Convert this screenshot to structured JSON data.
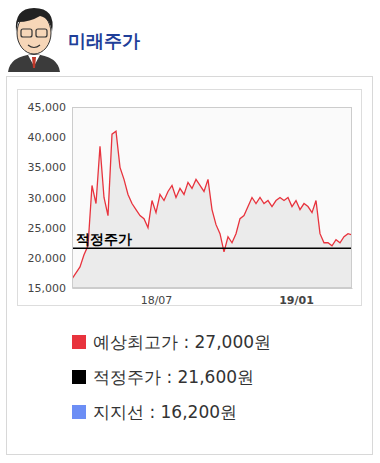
{
  "chart_data": {
    "type": "line",
    "title": "미래주가",
    "color": "#e8333d",
    "categories": [
      null,
      null,
      null,
      null,
      null,
      null,
      null,
      null,
      null,
      null,
      null,
      null,
      null,
      null,
      null,
      null,
      null,
      null,
      null,
      null,
      null,
      "18/07",
      null,
      null,
      null,
      null,
      null,
      null,
      null,
      null,
      null,
      null,
      null,
      null,
      null,
      null,
      null,
      null,
      null,
      null,
      null,
      null,
      null,
      null,
      null,
      null,
      null,
      null,
      null,
      null,
      null,
      null,
      null,
      null,
      null,
      null,
      "19/01",
      null,
      null,
      null,
      null,
      null,
      null,
      null,
      null,
      null,
      null,
      null,
      null,
      null,
      null
    ],
    "values": [
      16500,
      17500,
      18500,
      20500,
      22000,
      32000,
      29000,
      38500,
      30000,
      27000,
      40500,
      41000,
      35000,
      33000,
      30500,
      29000,
      28000,
      27000,
      26500,
      25000,
      29500,
      27500,
      30500,
      29500,
      31000,
      32000,
      30000,
      31500,
      30500,
      32500,
      31500,
      33000,
      32000,
      31000,
      33000,
      28000,
      25500,
      24000,
      21000,
      23500,
      22500,
      24000,
      26500,
      27000,
      28500,
      30000,
      29000,
      30000,
      29000,
      29500,
      28500,
      29500,
      30000,
      29500,
      30000,
      28500,
      29500,
      28000,
      29000,
      28500,
      27500,
      29500,
      24000,
      22500,
      22500,
      22000,
      23000,
      22500,
      23500,
      24000,
      23800
    ],
    "ylim": [
      15000,
      45000
    ],
    "yticks": [
      {
        "value": 15000,
        "label": "15,000"
      },
      {
        "value": 20000,
        "label": "20,000"
      },
      {
        "value": 25000,
        "label": "25,000"
      },
      {
        "value": 30000,
        "label": "30,000"
      },
      {
        "value": 35000,
        "label": "35,000"
      },
      {
        "value": 40000,
        "label": "40,000"
      },
      {
        "value": 45000,
        "label": "45,000"
      }
    ],
    "annotations": [
      {
        "text": "적정주가",
        "value": 21600,
        "color": "#000000"
      }
    ],
    "legend_entries": [
      {
        "text": "예상최고가 : 27,000원",
        "color": "#e8333d"
      },
      {
        "text": "적정주가 : 21,600원",
        "color": "#000000"
      },
      {
        "text": "지지선 : 16,200원",
        "color": "#6c8ef5"
      }
    ]
  }
}
